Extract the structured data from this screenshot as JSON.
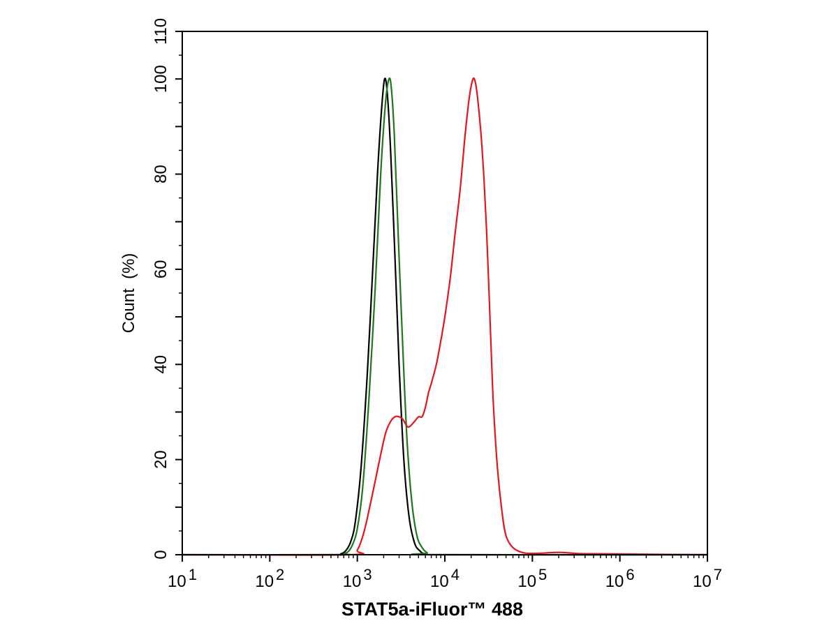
{
  "chart_data": {
    "type": "line",
    "title": "",
    "xlabel": "STAT5a-iFluor™ 488",
    "ylabel": "Count  (%)",
    "xscale": "log",
    "xlim": [
      10,
      10000000
    ],
    "ylim": [
      0,
      110
    ],
    "x_ticks": [
      {
        "value": 10,
        "base": "10",
        "exp": "1"
      },
      {
        "value": 100,
        "base": "10",
        "exp": "2"
      },
      {
        "value": 1000,
        "base": "10",
        "exp": "3"
      },
      {
        "value": 10000,
        "base": "10",
        "exp": "4"
      },
      {
        "value": 100000,
        "base": "10",
        "exp": "5"
      },
      {
        "value": 1000000,
        "base": "10",
        "exp": "6"
      },
      {
        "value": 10000000,
        "base": "10",
        "exp": "7"
      }
    ],
    "y_ticks": [
      0,
      20,
      40,
      60,
      80,
      100,
      110
    ],
    "grid": false,
    "legend": "none",
    "series": [
      {
        "color": "#000000",
        "x": [
          10,
          500,
          650,
          750,
          850,
          950,
          1100,
          1300,
          1500,
          1700,
          1900,
          2050,
          2200,
          2400,
          2700,
          3000,
          3400,
          3900,
          4500,
          5200,
          6000,
          10000,
          10000000
        ],
        "y": [
          0,
          0,
          0.2,
          1,
          3,
          7,
          18,
          38,
          60,
          80,
          94,
          100,
          97,
          85,
          62,
          40,
          20,
          8,
          2.5,
          0.8,
          0.2,
          0,
          0
        ]
      },
      {
        "color": "#1a7a1a",
        "x": [
          10,
          550,
          700,
          800,
          900,
          1000,
          1150,
          1350,
          1600,
          1850,
          2100,
          2300,
          2450,
          2650,
          2950,
          3300,
          3700,
          4200,
          4800,
          5500,
          6300,
          7500,
          10000000
        ],
        "y": [
          0,
          0,
          0.2,
          0.8,
          2.5,
          5.5,
          14,
          32,
          56,
          80,
          95,
          100,
          98,
          88,
          66,
          44,
          24,
          11,
          4,
          1.5,
          0.4,
          0,
          0
        ]
      },
      {
        "color": "#e8141c",
        "x": [
          10,
          800,
          1000,
          1200,
          1500,
          1800,
          2100,
          2400,
          2700,
          3000,
          3300,
          3700,
          4000,
          4500,
          5000,
          5500,
          6000,
          6500,
          7000,
          8000,
          9000,
          10000,
          11500,
          13000,
          15000,
          17000,
          19000,
          21000,
          22500,
          24000,
          26000,
          28000,
          30000,
          32000,
          34000,
          36000,
          40000,
          45000,
          50000,
          60000,
          80000,
          120000,
          200000,
          300000,
          500000,
          10000000
        ],
        "y": [
          0,
          0,
          1,
          5,
          13,
          20,
          25.5,
          28,
          29,
          29,
          28.5,
          27,
          27,
          28,
          29,
          29,
          31,
          34,
          36,
          40,
          45,
          50,
          58,
          67,
          77,
          88,
          96,
          100,
          99,
          95,
          88,
          79,
          68,
          55,
          42,
          31,
          18,
          9,
          4,
          1.5,
          0.4,
          0.3,
          0.5,
          0.3,
          0.2,
          0
        ]
      }
    ]
  }
}
